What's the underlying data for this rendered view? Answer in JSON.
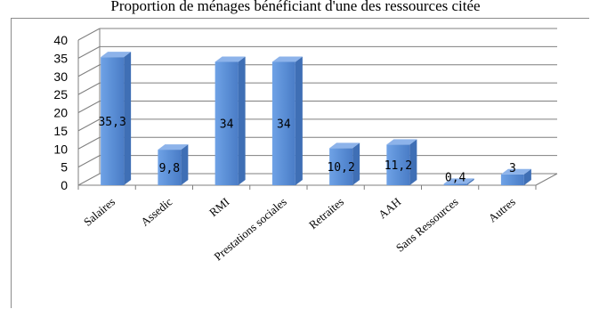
{
  "title": "Proportion de ménages bénéficiant d'une des ressources citée",
  "chart_data": {
    "type": "bar",
    "title": "Proportion de ménages bénéficiant d'une des ressources citée",
    "categories": [
      "Salaires",
      "Assedic",
      "RMI",
      "Prestations sociales",
      "Retraites",
      "AAH",
      "Sans Ressources",
      "Autres"
    ],
    "values": [
      35.3,
      9.8,
      34,
      34,
      10.2,
      11.2,
      0.4,
      3
    ],
    "data_labels": [
      "35,3",
      "9,8",
      "34",
      "34",
      "10,2",
      "11,2",
      "0,4",
      "3"
    ],
    "yticks": [
      "0",
      "5",
      "10",
      "15",
      "20",
      "25",
      "30",
      "35",
      "40"
    ],
    "ylim": [
      0,
      40
    ],
    "xlabel": "",
    "ylabel": "",
    "grid": true,
    "three_d": true,
    "bar_color": "#5b8fd6",
    "bar_side_color": "#3f6fb5",
    "bar_top_color": "#8db3ea"
  }
}
